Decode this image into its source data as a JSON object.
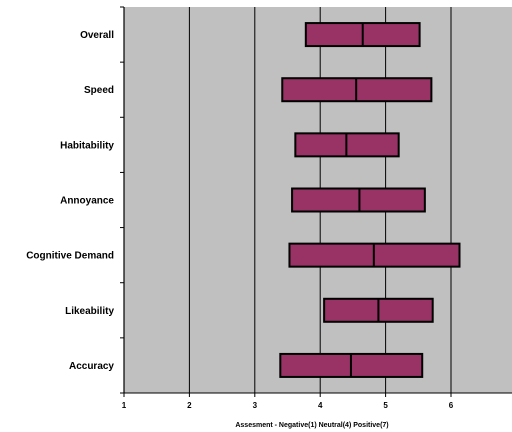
{
  "chart_data": {
    "type": "box",
    "orientation": "horizontal",
    "title": "",
    "xlabel": "Assesment - Negative(1) Neutral(4) Positive(7)",
    "ylabel": "",
    "xlim": [
      1,
      7
    ],
    "xticks": [
      "1",
      "2",
      "3",
      "4",
      "5",
      "6"
    ],
    "grid": "vertical lines at each integer",
    "legend": "none",
    "categories": [
      "Overall",
      "Speed",
      "Habitability",
      "Annoyance",
      "Cognitive Demand",
      "Likeability",
      "Accuracy"
    ],
    "series": [
      {
        "low": 3.78,
        "median": 4.65,
        "high": 5.52
      },
      {
        "low": 3.42,
        "median": 4.55,
        "high": 5.7
      },
      {
        "low": 3.62,
        "median": 4.4,
        "high": 5.2
      },
      {
        "low": 3.57,
        "median": 4.6,
        "high": 5.6
      },
      {
        "low": 3.53,
        "median": 4.82,
        "high": 6.13
      },
      {
        "low": 4.06,
        "median": 4.89,
        "high": 5.72
      },
      {
        "low": 3.39,
        "median": 4.47,
        "high": 5.56
      }
    ],
    "colors": {
      "plot_background": "#c0c0c0",
      "box_fill": "#993366",
      "box_stroke": "#000000",
      "grid": "#000000"
    }
  }
}
